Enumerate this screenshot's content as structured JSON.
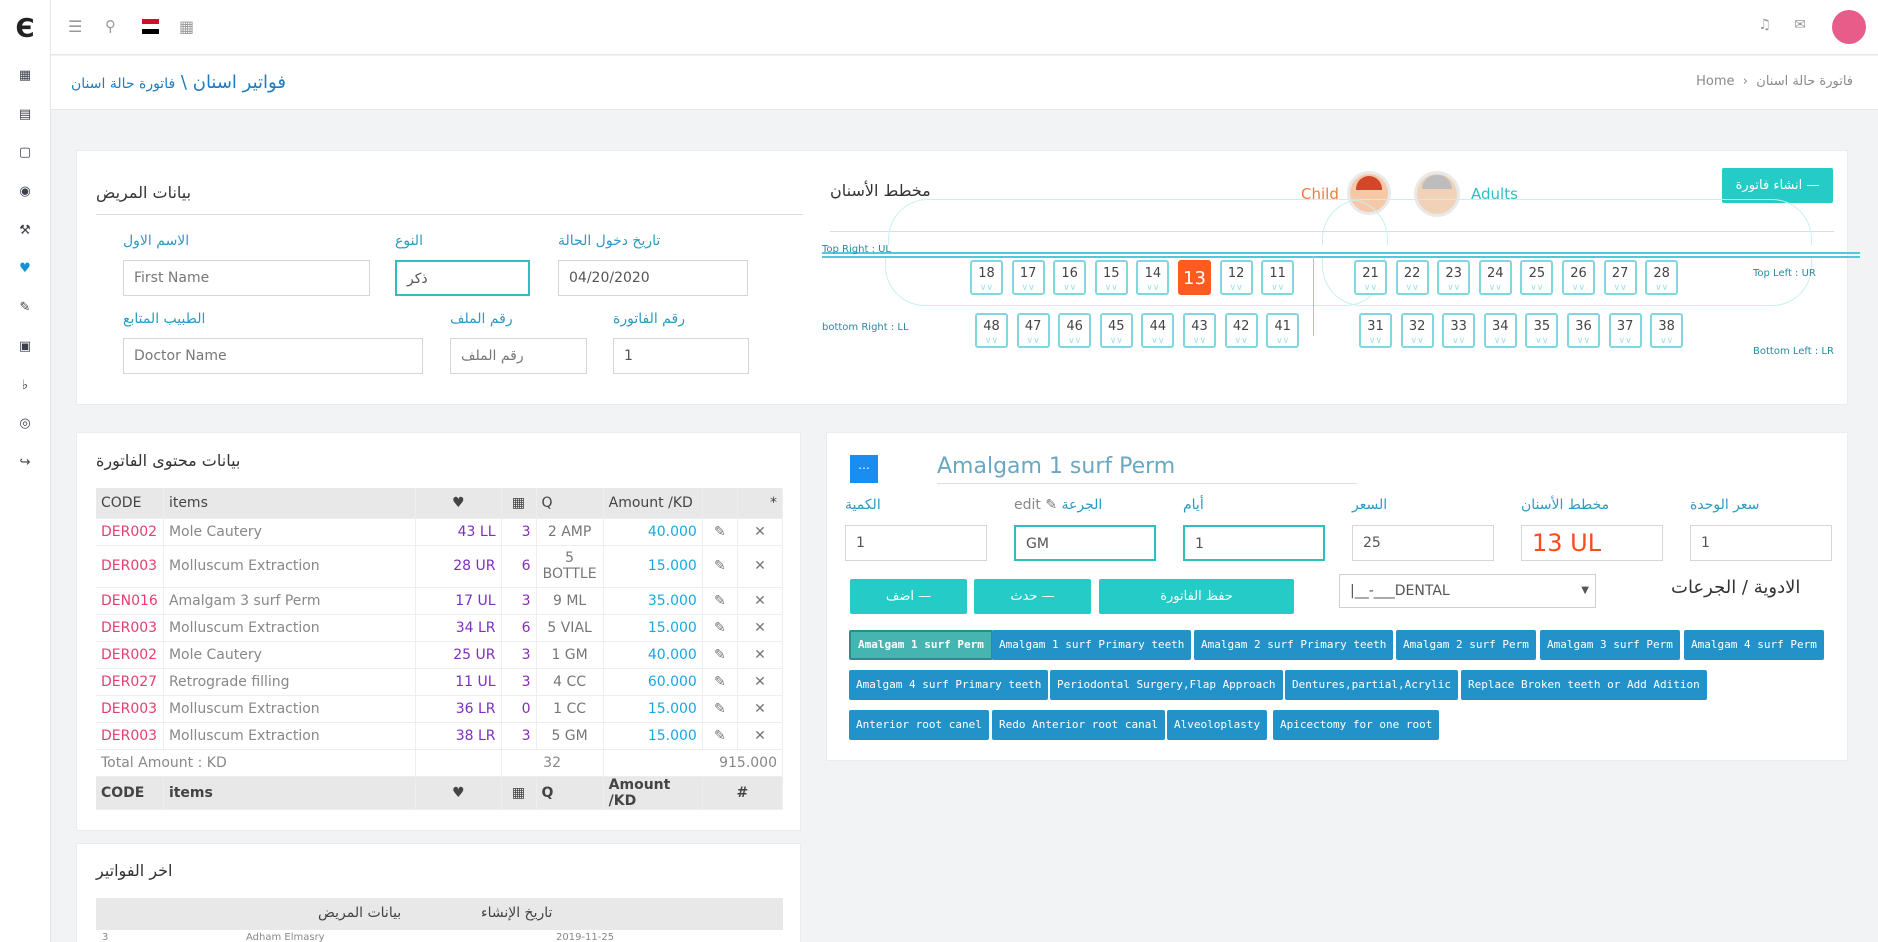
{
  "topbar": {
    "icons": [
      "menu-icon",
      "search-icon",
      "flag-icon",
      "grid-icon",
      "bell-icon",
      "mail-icon"
    ]
  },
  "sidebar": {
    "icons": [
      "building-icon",
      "book-icon",
      "notebook-icon",
      "globe-icon",
      "gavel-icon",
      "tooth-icon",
      "pen-icon",
      "hospital-icon",
      "bell-icon",
      "earth-icon",
      "logout-icon"
    ]
  },
  "breadcrumb": {
    "title": "فواتير اسنان",
    "separator": "\\",
    "subtitle": "فاتورة حالة اسنان",
    "home": "Home",
    "current": "فاتورة حالة اسنان"
  },
  "patient": {
    "heading": "بيانات المريض",
    "first_name_label": "الاسم الاول",
    "first_name_placeholder": "First Name",
    "gender_label": "النوع",
    "gender_value": "ذكر",
    "date_label": "تاريخ دخول الحالة",
    "date_value": "04/20/2020",
    "doctor_label": "الطبيب المتابع",
    "doctor_placeholder": "Doctor Name",
    "file_label": "رقم الملف",
    "file_placeholder": "رقم الملف",
    "invoice_no_label": "رقم الفاتورة",
    "invoice_no_value": "1"
  },
  "chart": {
    "heading": "مخطط الأسنان",
    "child_label": "Child",
    "adults_label": "Adults",
    "create_button": "انشاء فاتورة",
    "top_right_label": "Top Right : UL",
    "top_left_label": "Top Left : UR",
    "bottom_right_label": "bottom Right : LL",
    "bottom_left_label": "Bottom Left : LR",
    "top_right": [
      "18",
      "17",
      "16",
      "15",
      "14",
      "13",
      "12",
      "11"
    ],
    "top_left": [
      "21",
      "22",
      "23",
      "24",
      "25",
      "26",
      "27",
      "28"
    ],
    "bottom_right": [
      "48",
      "47",
      "46",
      "45",
      "44",
      "43",
      "42",
      "41"
    ],
    "bottom_left": [
      "31",
      "32",
      "33",
      "34",
      "35",
      "36",
      "37",
      "38"
    ],
    "selected": "13",
    "tooth_glyph": "🦷"
  },
  "invoice": {
    "heading": "بيانات محتوى الفاتورة",
    "headers": {
      "code": "CODE",
      "items": "items",
      "q": "Q",
      "amount": "Amount /KD",
      "star": "*",
      "hash": "#"
    },
    "rows": [
      {
        "code": "DER002",
        "item": "Mole Cautery",
        "tooth": "43 LL",
        "days": "3",
        "q": "2 AMP",
        "amount": "40.000"
      },
      {
        "code": "DER003",
        "item": "Molluscum Extraction",
        "tooth": "28 UR",
        "days": "6",
        "q": "5 BOTTLE",
        "amount": "15.000"
      },
      {
        "code": "DEN016",
        "item": "Amalgam 3 surf Perm",
        "tooth": "17 UL",
        "days": "3",
        "q": "9 ML",
        "amount": "35.000"
      },
      {
        "code": "DER003",
        "item": "Molluscum Extraction",
        "tooth": "34 LR",
        "days": "6",
        "q": "5 VIAL",
        "amount": "15.000"
      },
      {
        "code": "DER002",
        "item": "Mole Cautery",
        "tooth": "25 UR",
        "days": "3",
        "q": "1 GM",
        "amount": "40.000"
      },
      {
        "code": "DER027",
        "item": "Retrograde filling",
        "tooth": "11 UL",
        "days": "3",
        "q": "4 CC",
        "amount": "60.000"
      },
      {
        "code": "DER003",
        "item": "Molluscum Extraction",
        "tooth": "36 LR",
        "days": "0",
        "q": "1 CC",
        "amount": "15.000"
      },
      {
        "code": "DER003",
        "item": "Molluscum Extraction",
        "tooth": "38 LR",
        "days": "3",
        "q": "5 GM",
        "amount": "15.000"
      }
    ],
    "total_label": "Total Amount : KD",
    "total_days": "32",
    "total_amount": "915.000"
  },
  "recent": {
    "heading": "اخر الفواتير",
    "col_patient": "بيانات المريض",
    "col_date": "تاريخ الإنشاء",
    "row1_no": "3",
    "row1_name": "Adham Elmasry",
    "row1_date": "2019-11-25"
  },
  "drug_form": {
    "title": "Amalgam 1 surf Perm",
    "qty_label": "الكمية",
    "qty_value": "1",
    "dose_label": "الجرعة",
    "dose_edit": "edit",
    "dose_value": "GM",
    "days_label": "أيام",
    "days_value": "1",
    "price_label": "السعر",
    "price_value": "25",
    "tooth_label": "مخطط الأسنان",
    "tooth_value": "13 UL",
    "unit_price_label": "سعر الوحدة",
    "unit_price_value": "1",
    "add_button": "اضف",
    "update_button": "حدث",
    "save_button": "حفظ الفاتورة",
    "select_value": "|__-___DENTAL",
    "drugs_heading": "الادوية / الجرعات",
    "drugs": [
      "Amalgam 1 surf Perm",
      "Amalgam 1 surf Primary teeth",
      "Amalgam 2 surf Primary teeth",
      "Amalgam 2 surf Perm",
      "Amalgam 3 surf Perm",
      "Amalgam 4 surf Perm",
      "Amalgam 4 surf Primary teeth",
      "Periodontal Surgery,Flap Approach",
      "Dentures,partial,Acrylic",
      "Replace Broken teeth or Add Adition",
      "Anterior root canel",
      "Redo Anterior root canal",
      "Alveoloplasty",
      "Apicectomy for one root"
    ]
  },
  "colors": {
    "accent": "#25cbc7",
    "primary": "#2392c9",
    "selected_tooth": "#ff5a1f",
    "code": "#e2416f"
  }
}
